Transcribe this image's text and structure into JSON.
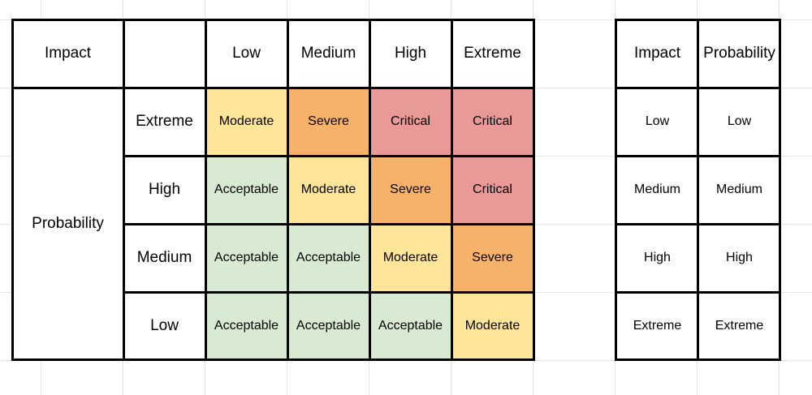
{
  "matrix": {
    "impact_header": "Impact",
    "probability_label": "Probability",
    "impact_levels": [
      "Low",
      "Medium",
      "High",
      "Extreme"
    ],
    "probability_levels": [
      "Extreme",
      "High",
      "Medium",
      "Low"
    ],
    "cells": [
      [
        "Moderate",
        "Severe",
        "Critical",
        "Critical"
      ],
      [
        "Acceptable",
        "Moderate",
        "Severe",
        "Critical"
      ],
      [
        "Acceptable",
        "Acceptable",
        "Moderate",
        "Severe"
      ],
      [
        "Acceptable",
        "Acceptable",
        "Acceptable",
        "Moderate"
      ]
    ],
    "colors": {
      "Acceptable": "#d9ead3",
      "Moderate": "#ffe599",
      "Severe": "#f6b26b",
      "Critical": "#ea9999"
    }
  },
  "legend": {
    "impact_header": "Impact",
    "probability_header": "Probability",
    "impact_values": [
      "Low",
      "Medium",
      "High",
      "Extreme"
    ],
    "probability_values": [
      "Low",
      "Medium",
      "High",
      "Extreme"
    ]
  }
}
